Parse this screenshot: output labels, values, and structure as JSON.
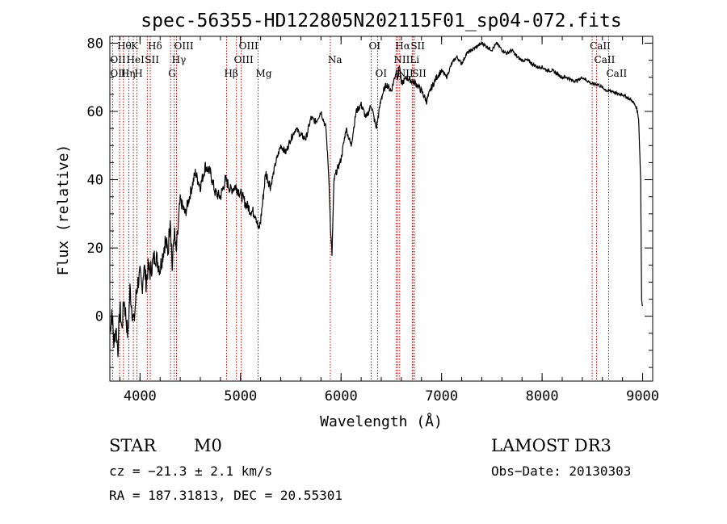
{
  "chart_data": {
    "type": "line",
    "title": "spec-56355-HD122805N202115F01_sp04-072.fits",
    "xlabel": "Wavelength (Å)",
    "ylabel": "Flux (relative)",
    "xlim": [
      3700,
      9100
    ],
    "ylim": [
      -19,
      82
    ],
    "xticks": [
      4000,
      5000,
      6000,
      7000,
      8000,
      9000
    ],
    "yticks": [
      0,
      20,
      40,
      60,
      80
    ],
    "series": [
      {
        "name": "spectrum",
        "x": [
          3700,
          3720,
          3740,
          3760,
          3780,
          3800,
          3820,
          3840,
          3860,
          3880,
          3900,
          3920,
          3940,
          3960,
          3980,
          4000,
          4020,
          4040,
          4060,
          4080,
          4100,
          4150,
          4200,
          4250,
          4280,
          4300,
          4320,
          4340,
          4360,
          4400,
          4450,
          4500,
          4550,
          4600,
          4650,
          4700,
          4750,
          4800,
          4850,
          4870,
          4900,
          4950,
          5000,
          5050,
          5100,
          5150,
          5180,
          5200,
          5250,
          5300,
          5350,
          5400,
          5450,
          5500,
          5550,
          5600,
          5650,
          5700,
          5750,
          5800,
          5850,
          5880,
          5895,
          5910,
          5930,
          5950,
          6000,
          6050,
          6100,
          6150,
          6200,
          6250,
          6300,
          6350,
          6400,
          6450,
          6500,
          6550,
          6563,
          6580,
          6600,
          6650,
          6700,
          6750,
          6800,
          6850,
          6900,
          6950,
          7000,
          7050,
          7100,
          7150,
          7200,
          7250,
          7300,
          7350,
          7400,
          7450,
          7500,
          7550,
          7600,
          7650,
          7700,
          7750,
          7800,
          7850,
          7900,
          7950,
          8000,
          8050,
          8100,
          8150,
          8200,
          8250,
          8300,
          8350,
          8400,
          8450,
          8500,
          8550,
          8600,
          8650,
          8700,
          8750,
          8800,
          8850,
          8900,
          8920,
          8940,
          8960,
          8980,
          8990,
          9000
        ],
        "y": [
          -5,
          2,
          -8,
          -3,
          -10,
          3,
          -4,
          5,
          0,
          -6,
          8,
          2,
          -2,
          6,
          10,
          12,
          8,
          15,
          10,
          14,
          13,
          18,
          14,
          22,
          19,
          30,
          14,
          25,
          18,
          34,
          30,
          36,
          42,
          38,
          44,
          42,
          36,
          35,
          40,
          39,
          37,
          38,
          36,
          33,
          31,
          30,
          25,
          28,
          42,
          38,
          45,
          50,
          48,
          52,
          55,
          53,
          52,
          58,
          57,
          60,
          55,
          40,
          25,
          18,
          40,
          42,
          46,
          55,
          50,
          60,
          62,
          58,
          62,
          55,
          64,
          68,
          66,
          72,
          70,
          74,
          68,
          70,
          69,
          68,
          66,
          63,
          67,
          70,
          72,
          70,
          74,
          76,
          74,
          77,
          78,
          79,
          80,
          79,
          78,
          80,
          78,
          77,
          78,
          76,
          75,
          75,
          74,
          73,
          73,
          72,
          72,
          71,
          70,
          70,
          69,
          69,
          70,
          69,
          68,
          68,
          67,
          66,
          66,
          65,
          65,
          64,
          63,
          62,
          61,
          58,
          40,
          5,
          3
        ]
      }
    ],
    "spectral_lines": [
      {
        "label": "Hθ",
        "x": 3797,
        "row": 0
      },
      {
        "label": "K",
        "x": 3934,
        "row": 0
      },
      {
        "label": "Hδ",
        "x": 4102,
        "row": 0
      },
      {
        "label": "OIII",
        "x": 4363,
        "row": 0
      },
      {
        "label": "OIII",
        "x": 5007,
        "row": 0
      },
      {
        "label": "OI",
        "x": 6300,
        "row": 0
      },
      {
        "label": "Hα",
        "x": 6563,
        "row": 0
      },
      {
        "label": "SII",
        "x": 6716,
        "row": 0
      },
      {
        "label": "CaII",
        "x": 8498,
        "row": 0
      },
      {
        "label": "OII",
        "x": 3727,
        "row": 1
      },
      {
        "label": "HeI",
        "x": 3889,
        "row": 1
      },
      {
        "label": "SII",
        "x": 4072,
        "row": 1
      },
      {
        "label": "Hγ",
        "x": 4340,
        "row": 1
      },
      {
        "label": "OIII",
        "x": 4959,
        "row": 1
      },
      {
        "label": "Na",
        "x": 5893,
        "row": 1
      },
      {
        "label": "NII",
        "x": 6548,
        "row": 1
      },
      {
        "label": "Li",
        "x": 6708,
        "row": 1
      },
      {
        "label": "CaII",
        "x": 8542,
        "row": 1
      },
      {
        "label": "OII",
        "x": 3727,
        "row": 2
      },
      {
        "label": "Hη",
        "x": 3835,
        "row": 2
      },
      {
        "label": "H",
        "x": 3968,
        "row": 2
      },
      {
        "label": "G",
        "x": 4304,
        "row": 2
      },
      {
        "label": "Hβ",
        "x": 4861,
        "row": 2
      },
      {
        "label": "Mg",
        "x": 5175,
        "row": 2
      },
      {
        "label": "OI",
        "x": 6364,
        "row": 2
      },
      {
        "label": "NII",
        "x": 6583,
        "row": 2
      },
      {
        "label": "SII",
        "x": 6731,
        "row": 2
      },
      {
        "label": "CaII",
        "x": 8662,
        "row": 2
      }
    ],
    "line_markers": [
      3727,
      3797,
      3835,
      3889,
      3934,
      3968,
      4072,
      4102,
      4304,
      4340,
      4363,
      4861,
      4959,
      5007,
      5175,
      5893,
      6300,
      6364,
      6548,
      6563,
      6583,
      6708,
      6716,
      6731,
      8498,
      8542,
      8662
    ]
  },
  "info": {
    "star_class": "STAR",
    "subclass": "M0",
    "survey": "LAMOST DR3",
    "cz": "cz = −21.3 ± 2.1 km/s",
    "obs_date": "Obs−Date: 20130303",
    "coords": "RA = 187.31813, DEC =  20.55301"
  },
  "colors": {
    "spectrum": "#000000",
    "marker": "#cc0000"
  }
}
